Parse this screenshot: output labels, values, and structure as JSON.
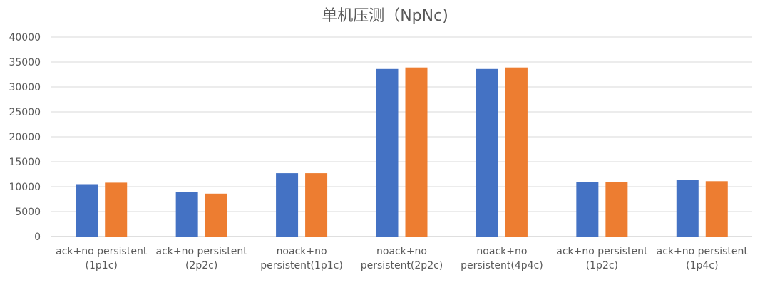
{
  "chart_data": {
    "type": "bar",
    "title": "单机压测（NpNc)",
    "xlabel": "",
    "ylabel": "",
    "ylim": [
      0,
      40000
    ],
    "yticks": [
      0,
      5000,
      10000,
      15000,
      20000,
      25000,
      30000,
      35000,
      40000
    ],
    "grid": true,
    "legend": "none",
    "categories": [
      [
        "ack+no persistent",
        "(1p1c)"
      ],
      [
        "ack+no persistent",
        "(2p2c)"
      ],
      [
        "noack+no",
        "persistent(1p1c)"
      ],
      [
        "noack+no",
        "persistent(2p2c)"
      ],
      [
        "noack+no",
        "persistent(4p4c)"
      ],
      [
        "ack+no persistent",
        "(1p2c)"
      ],
      [
        "ack+no persistent",
        "(1p4c)"
      ]
    ],
    "series": [
      {
        "color": "#4472C4",
        "values": [
          10500,
          8900,
          12700,
          33600,
          33600,
          11000,
          11300
        ]
      },
      {
        "color": "#ED7D31",
        "values": [
          10800,
          8600,
          12700,
          33900,
          33900,
          11000,
          11100
        ]
      }
    ]
  }
}
